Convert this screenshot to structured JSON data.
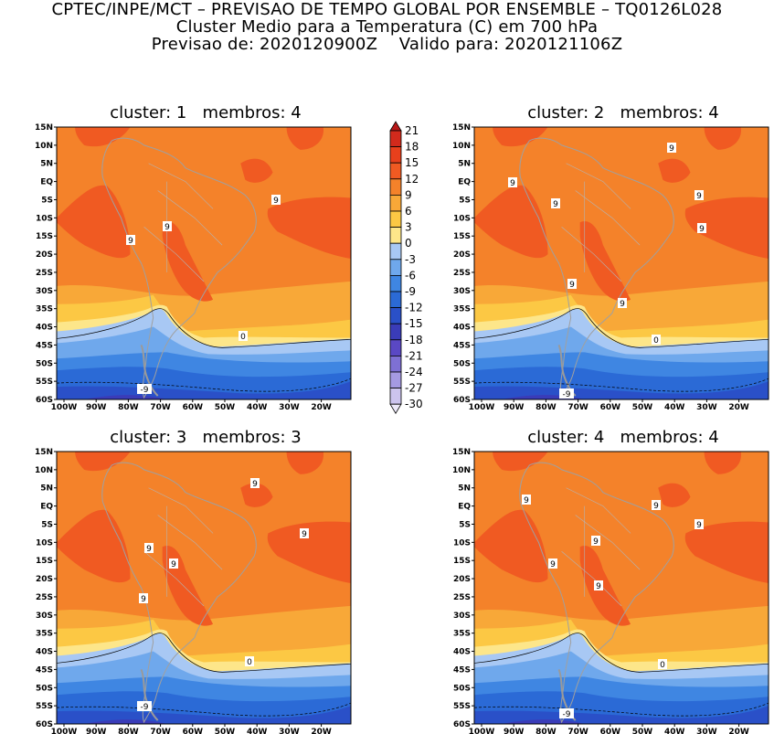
{
  "header": {
    "line1": "CPTEC/INPE/MCT – PREVISAO DE TEMPO GLOBAL POR ENSEMBLE – TQ0126L028",
    "line2": "Cluster Medio para a Temperatura (C) em 700 hPa",
    "line3": "Previsao de: 2020120900Z    Valido para: 2020121106Z"
  },
  "panels": [
    {
      "title": "cluster: 1   membros: 4"
    },
    {
      "title": "cluster: 2   membros: 4"
    },
    {
      "title": "cluster: 3   membros: 3"
    },
    {
      "title": "cluster: 4   membros: 4"
    }
  ],
  "lat_labels": [
    "15N",
    "10N",
    "5N",
    "EQ",
    "5S",
    "10S",
    "15S",
    "20S",
    "25S",
    "30S",
    "35S",
    "40S",
    "45S",
    "50S",
    "55S",
    "60S"
  ],
  "lon_labels": [
    "100W",
    "90W",
    "80W",
    "70W",
    "60W",
    "50W",
    "40W",
    "30W",
    "20W"
  ],
  "colorbar": {
    "labels": [
      "21",
      "18",
      "15",
      "12",
      "9",
      "6",
      "3",
      "0",
      "-3",
      "-6",
      "-9",
      "-12",
      "-15",
      "-18",
      "-21",
      "-24",
      "-27",
      "-30"
    ],
    "colors": [
      "#b81818",
      "#d22a1c",
      "#e8401c",
      "#f05a22",
      "#f4822a",
      "#f8a838",
      "#fcc844",
      "#fde68a",
      "#a8c8f4",
      "#6fa8ec",
      "#3f86e2",
      "#2b6ad6",
      "#2a50c8",
      "#3a3cb8",
      "#5a48c4",
      "#7e70d4",
      "#a59ae2",
      "#ccc4ee",
      "#ece8f8"
    ]
  },
  "contour_labels": {
    "nine": "9",
    "zero": "0",
    "neg_nine": "-9"
  }
}
